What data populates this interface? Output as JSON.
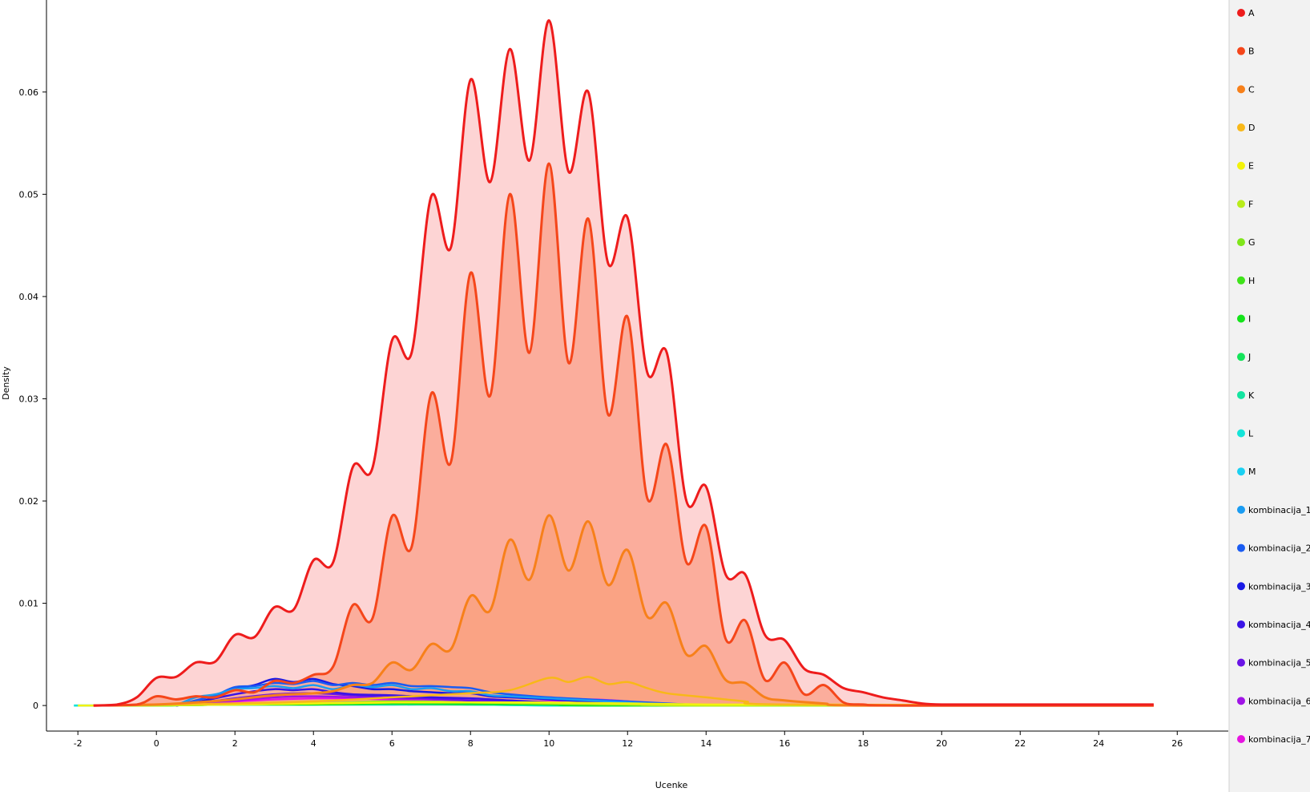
{
  "chart_data": {
    "type": "area",
    "title": "",
    "xlabel": "Ucenke",
    "ylabel": "Density",
    "xlim": [
      -2.8,
      27.3
    ],
    "ylim": [
      -0.0025,
      0.069
    ],
    "x_ticks": [
      -2,
      0,
      2,
      4,
      6,
      8,
      10,
      12,
      14,
      16,
      18,
      20,
      22,
      24,
      26
    ],
    "y_ticks": [
      0,
      0.01,
      0.02,
      0.03,
      0.04,
      0.05,
      0.06
    ],
    "grid": false,
    "legend_position": "right",
    "legend": [
      {
        "label": "A",
        "color": "#ee1c1c"
      },
      {
        "label": "B",
        "color": "#f5461a"
      },
      {
        "label": "C",
        "color": "#f7801a"
      },
      {
        "label": "D",
        "color": "#f8b818"
      },
      {
        "label": "E",
        "color": "#f2f20a"
      },
      {
        "label": "F",
        "color": "#b8ec1a"
      },
      {
        "label": "G",
        "color": "#7fe61a"
      },
      {
        "label": "H",
        "color": "#3fe41a"
      },
      {
        "label": "I",
        "color": "#14e41a"
      },
      {
        "label": "J",
        "color": "#14e45a"
      },
      {
        "label": "K",
        "color": "#14e4a0"
      },
      {
        "label": "L",
        "color": "#14e4d8"
      },
      {
        "label": "M",
        "color": "#1ad0f2"
      },
      {
        "label": "kombinacija_1",
        "color": "#1a9cf2"
      },
      {
        "label": "kombinacija_2",
        "color": "#1a5cf2"
      },
      {
        "label": "kombinacija_3",
        "color": "#1a1ae6"
      },
      {
        "label": "kombinacija_4",
        "color": "#3a14e6"
      },
      {
        "label": "kombinacija_5",
        "color": "#6a14e6"
      },
      {
        "label": "kombinacija_6",
        "color": "#a014e6"
      },
      {
        "label": "kombinacija_7",
        "color": "#e614e0"
      }
    ],
    "series": [
      {
        "name": "A",
        "color": "#ee1c1c",
        "fill": "#fcc6c6",
        "x": [
          -1.6,
          -1,
          -0.5,
          0,
          0.5,
          1,
          1.5,
          2,
          2.5,
          3,
          3.5,
          4,
          4.5,
          5,
          5.5,
          6,
          6.5,
          7,
          7.5,
          8,
          8.5,
          9,
          9.5,
          10,
          10.5,
          11,
          11.5,
          12,
          12.5,
          13,
          13.5,
          14,
          14.5,
          15,
          15.5,
          16,
          16.5,
          17,
          17.5,
          18,
          18.5,
          19,
          19.5,
          20,
          21,
          22,
          24,
          25.4
        ],
        "y": [
          0,
          0.0001,
          0.0008,
          0.0027,
          0.0028,
          0.0042,
          0.0043,
          0.0069,
          0.0067,
          0.0096,
          0.0094,
          0.0142,
          0.014,
          0.0233,
          0.0232,
          0.0357,
          0.0345,
          0.0498,
          0.0448,
          0.0612,
          0.0512,
          0.0642,
          0.0533,
          0.067,
          0.0522,
          0.06,
          0.0433,
          0.0477,
          0.0326,
          0.0345,
          0.02,
          0.0214,
          0.0128,
          0.0128,
          0.0069,
          0.0064,
          0.0036,
          0.003,
          0.0017,
          0.0013,
          0.0008,
          0.0005,
          0.0002,
          0.0001,
          0.0001,
          0.0001,
          0.0001,
          0.0001
        ]
      },
      {
        "name": "B",
        "color": "#f5461a",
        "fill": "#f9a08a",
        "x": [
          -1.6,
          -0.5,
          0,
          0.5,
          1,
          1.5,
          2,
          2.5,
          3,
          3.5,
          4,
          4.5,
          5,
          5.5,
          6,
          6.5,
          7,
          7.5,
          8,
          8.5,
          9,
          9.5,
          10,
          10.5,
          11,
          11.5,
          12,
          12.5,
          13,
          13.5,
          14,
          14.5,
          15,
          15.5,
          16,
          16.5,
          17,
          17.5,
          18,
          19,
          25.4
        ],
        "y": [
          0,
          0.0001,
          0.0009,
          0.0006,
          0.0009,
          0.0008,
          0.0015,
          0.0013,
          0.0024,
          0.0022,
          0.003,
          0.0038,
          0.0098,
          0.0085,
          0.0185,
          0.0155,
          0.0305,
          0.0238,
          0.0423,
          0.0303,
          0.05,
          0.0345,
          0.053,
          0.0335,
          0.0476,
          0.0285,
          0.038,
          0.0203,
          0.0255,
          0.014,
          0.0175,
          0.0065,
          0.0083,
          0.0025,
          0.0042,
          0.0011,
          0.002,
          0.0003,
          0.0001,
          0,
          0
        ]
      },
      {
        "name": "C",
        "color": "#f7801a",
        "fill": "#f9a07c",
        "x": [
          -1.6,
          0,
          1,
          2,
          3,
          4,
          4.5,
          5,
          5.5,
          6,
          6.5,
          7,
          7.5,
          8,
          8.5,
          9,
          9.5,
          10,
          10.5,
          11,
          11.5,
          12,
          12.5,
          13,
          13.5,
          14,
          14.5,
          15,
          15.5,
          16,
          17,
          18,
          25.4
        ],
        "y": [
          0,
          0.0001,
          0.0003,
          0.0006,
          0.001,
          0.0012,
          0.0014,
          0.002,
          0.0022,
          0.0042,
          0.0035,
          0.006,
          0.0055,
          0.0107,
          0.0093,
          0.0162,
          0.0123,
          0.0186,
          0.0132,
          0.018,
          0.0118,
          0.0152,
          0.0087,
          0.01,
          0.005,
          0.0058,
          0.0025,
          0.0022,
          0.0008,
          0.0005,
          0.0002,
          0,
          0
        ]
      },
      {
        "name": "D",
        "color": "#f8b818",
        "x": [
          -1.6,
          0,
          2,
          4,
          6,
          8,
          9,
          10,
          10.5,
          11,
          11.5,
          12,
          12.5,
          13,
          14,
          15,
          16,
          25.4
        ],
        "y": [
          0,
          0.0001,
          0.0002,
          0.0004,
          0.0008,
          0.0012,
          0.0015,
          0.0027,
          0.0023,
          0.0028,
          0.0021,
          0.0023,
          0.0017,
          0.0012,
          0.0008,
          0.0004,
          0.0001,
          0
        ]
      },
      {
        "name": "E",
        "color": "#f2f20a",
        "x": [
          -2,
          -1,
          0,
          2,
          4,
          6,
          8,
          10,
          12,
          14,
          16,
          25.4
        ],
        "y": [
          0,
          0,
          0.0001,
          0.0001,
          0.0002,
          0.0003,
          0.0003,
          0.0003,
          0.0002,
          0.0001,
          0.0001,
          0
        ]
      },
      {
        "name": "F",
        "color": "#b8ec1a",
        "x": [
          -1.6,
          0,
          2,
          4,
          6,
          8,
          10,
          12,
          14,
          25.4
        ],
        "y": [
          0,
          0,
          0.0001,
          0.0002,
          0.0003,
          0.0003,
          0.0002,
          0.0001,
          0,
          0
        ]
      },
      {
        "name": "G",
        "color": "#7fe61a",
        "x": [
          -1.6,
          0,
          2,
          4,
          6,
          8,
          10,
          12,
          14,
          25.4
        ],
        "y": [
          0,
          0,
          0.0001,
          0.0002,
          0.0004,
          0.0003,
          0.0002,
          0.0001,
          0,
          0
        ]
      },
      {
        "name": "H",
        "color": "#3fe41a",
        "x": [
          -1.6,
          0,
          2,
          4,
          6,
          8,
          10,
          12,
          14,
          25.4
        ],
        "y": [
          0,
          0,
          0.0001,
          0.0002,
          0.0003,
          0.0003,
          0.0002,
          0.0001,
          0,
          0
        ]
      },
      {
        "name": "I",
        "color": "#14e41a",
        "x": [
          -1.6,
          0,
          2,
          4,
          6,
          8,
          10,
          12,
          25.4
        ],
        "y": [
          0,
          0,
          0.0001,
          0.0001,
          0.0002,
          0.0002,
          0.0001,
          0,
          0
        ]
      },
      {
        "name": "J",
        "color": "#14e45a",
        "x": [
          -1.6,
          0,
          2,
          4,
          6,
          8,
          10,
          12,
          25.4
        ],
        "y": [
          0,
          0,
          0.0001,
          0.0001,
          0.0002,
          0.0001,
          0.0001,
          0,
          0
        ]
      },
      {
        "name": "K",
        "color": "#14e4a0",
        "x": [
          -1.6,
          0,
          2,
          4,
          6,
          8,
          10,
          12,
          25.4
        ],
        "y": [
          0,
          0,
          0.0001,
          0.0001,
          0.0001,
          0.0001,
          0.0001,
          0,
          0
        ]
      },
      {
        "name": "L",
        "color": "#14e4d8",
        "x": [
          -2.1,
          -1,
          0,
          2,
          4,
          6,
          8,
          10,
          12,
          25.4
        ],
        "y": [
          0,
          0,
          0,
          0.0001,
          0.0001,
          0.0001,
          0.0001,
          0,
          0,
          0
        ]
      },
      {
        "name": "M",
        "color": "#1ad0f2",
        "x": [
          -2.1,
          -1,
          0,
          2,
          4,
          6,
          8,
          10,
          12,
          25.4
        ],
        "y": [
          0,
          0,
          0,
          0.0001,
          0.0001,
          0.0001,
          0.0001,
          0,
          0,
          0
        ]
      },
      {
        "name": "kombinacija_1",
        "color": "#1a9cf2",
        "x": [
          0.5,
          1,
          1.5,
          2,
          2.5,
          3,
          3.5,
          4,
          4.5,
          5,
          5.5,
          6,
          6.5,
          7,
          7.5,
          8,
          8.5,
          9,
          10,
          11,
          12,
          13,
          14
        ],
        "y": [
          0,
          0.0008,
          0.0011,
          0.0016,
          0.0017,
          0.0019,
          0.0017,
          0.002,
          0.0016,
          0.002,
          0.0018,
          0.002,
          0.0016,
          0.0017,
          0.0014,
          0.0014,
          0.001,
          0.0009,
          0.0007,
          0.0005,
          0.0003,
          0.0001,
          0
        ]
      },
      {
        "name": "kombinacija_2",
        "color": "#1a5cf2",
        "x": [
          0.5,
          1,
          1.5,
          2,
          2.5,
          3,
          3.5,
          4,
          4.5,
          5,
          5.5,
          6,
          6.5,
          7,
          7.5,
          8,
          8.5,
          9,
          10,
          11,
          12,
          13,
          14
        ],
        "y": [
          0,
          0.0005,
          0.001,
          0.0018,
          0.0019,
          0.0022,
          0.0021,
          0.0024,
          0.002,
          0.0022,
          0.002,
          0.0022,
          0.0019,
          0.0019,
          0.0018,
          0.0017,
          0.0013,
          0.0011,
          0.0008,
          0.0006,
          0.0004,
          0.0002,
          0
        ]
      },
      {
        "name": "kombinacija_3",
        "color": "#1a1ae6",
        "x": [
          0.5,
          1,
          1.5,
          2,
          2.5,
          3,
          3.5,
          4,
          4.5,
          5,
          5.5,
          6,
          6.5,
          7,
          7.5,
          8,
          8.5,
          9,
          10,
          11,
          12,
          13
        ],
        "y": [
          0,
          0.0003,
          0.0008,
          0.0016,
          0.002,
          0.0026,
          0.0023,
          0.0026,
          0.0021,
          0.0019,
          0.0016,
          0.0016,
          0.0014,
          0.0013,
          0.0012,
          0.0012,
          0.0009,
          0.0008,
          0.0006,
          0.0004,
          0.0002,
          0
        ]
      },
      {
        "name": "kombinacija_4",
        "color": "#3a14e6",
        "x": [
          0.5,
          1,
          2,
          2.5,
          3,
          3.5,
          4,
          4.5,
          5,
          6,
          7,
          8,
          9,
          10,
          12
        ],
        "y": [
          0,
          0.0003,
          0.0011,
          0.0014,
          0.0016,
          0.0015,
          0.0016,
          0.0013,
          0.0011,
          0.001,
          0.0008,
          0.0007,
          0.0005,
          0.0003,
          0
        ]
      },
      {
        "name": "kombinacija_5",
        "color": "#6a14e6",
        "x": [
          0.5,
          1,
          2,
          3,
          4,
          5,
          6,
          7,
          8,
          9,
          10,
          12
        ],
        "y": [
          0,
          0.0002,
          0.0007,
          0.0011,
          0.0012,
          0.001,
          0.0008,
          0.0007,
          0.0005,
          0.0004,
          0.0002,
          0
        ]
      },
      {
        "name": "kombinacija_6",
        "color": "#a014e6",
        "x": [
          0.5,
          1,
          2,
          3,
          4,
          5,
          6,
          7,
          8,
          9,
          10,
          12
        ],
        "y": [
          0,
          0.0002,
          0.0005,
          0.0008,
          0.0009,
          0.0008,
          0.0007,
          0.0006,
          0.0005,
          0.0003,
          0.0002,
          0
        ]
      },
      {
        "name": "kombinacija_7",
        "color": "#e614e0",
        "x": [
          0.5,
          1,
          2,
          3,
          4,
          5,
          6,
          7,
          8,
          9,
          10,
          11,
          12,
          13
        ],
        "y": [
          0,
          0.0002,
          0.0004,
          0.0006,
          0.0007,
          0.0007,
          0.0006,
          0.0006,
          0.0005,
          0.0004,
          0.0004,
          0.0006,
          0.0004,
          0
        ]
      }
    ]
  }
}
